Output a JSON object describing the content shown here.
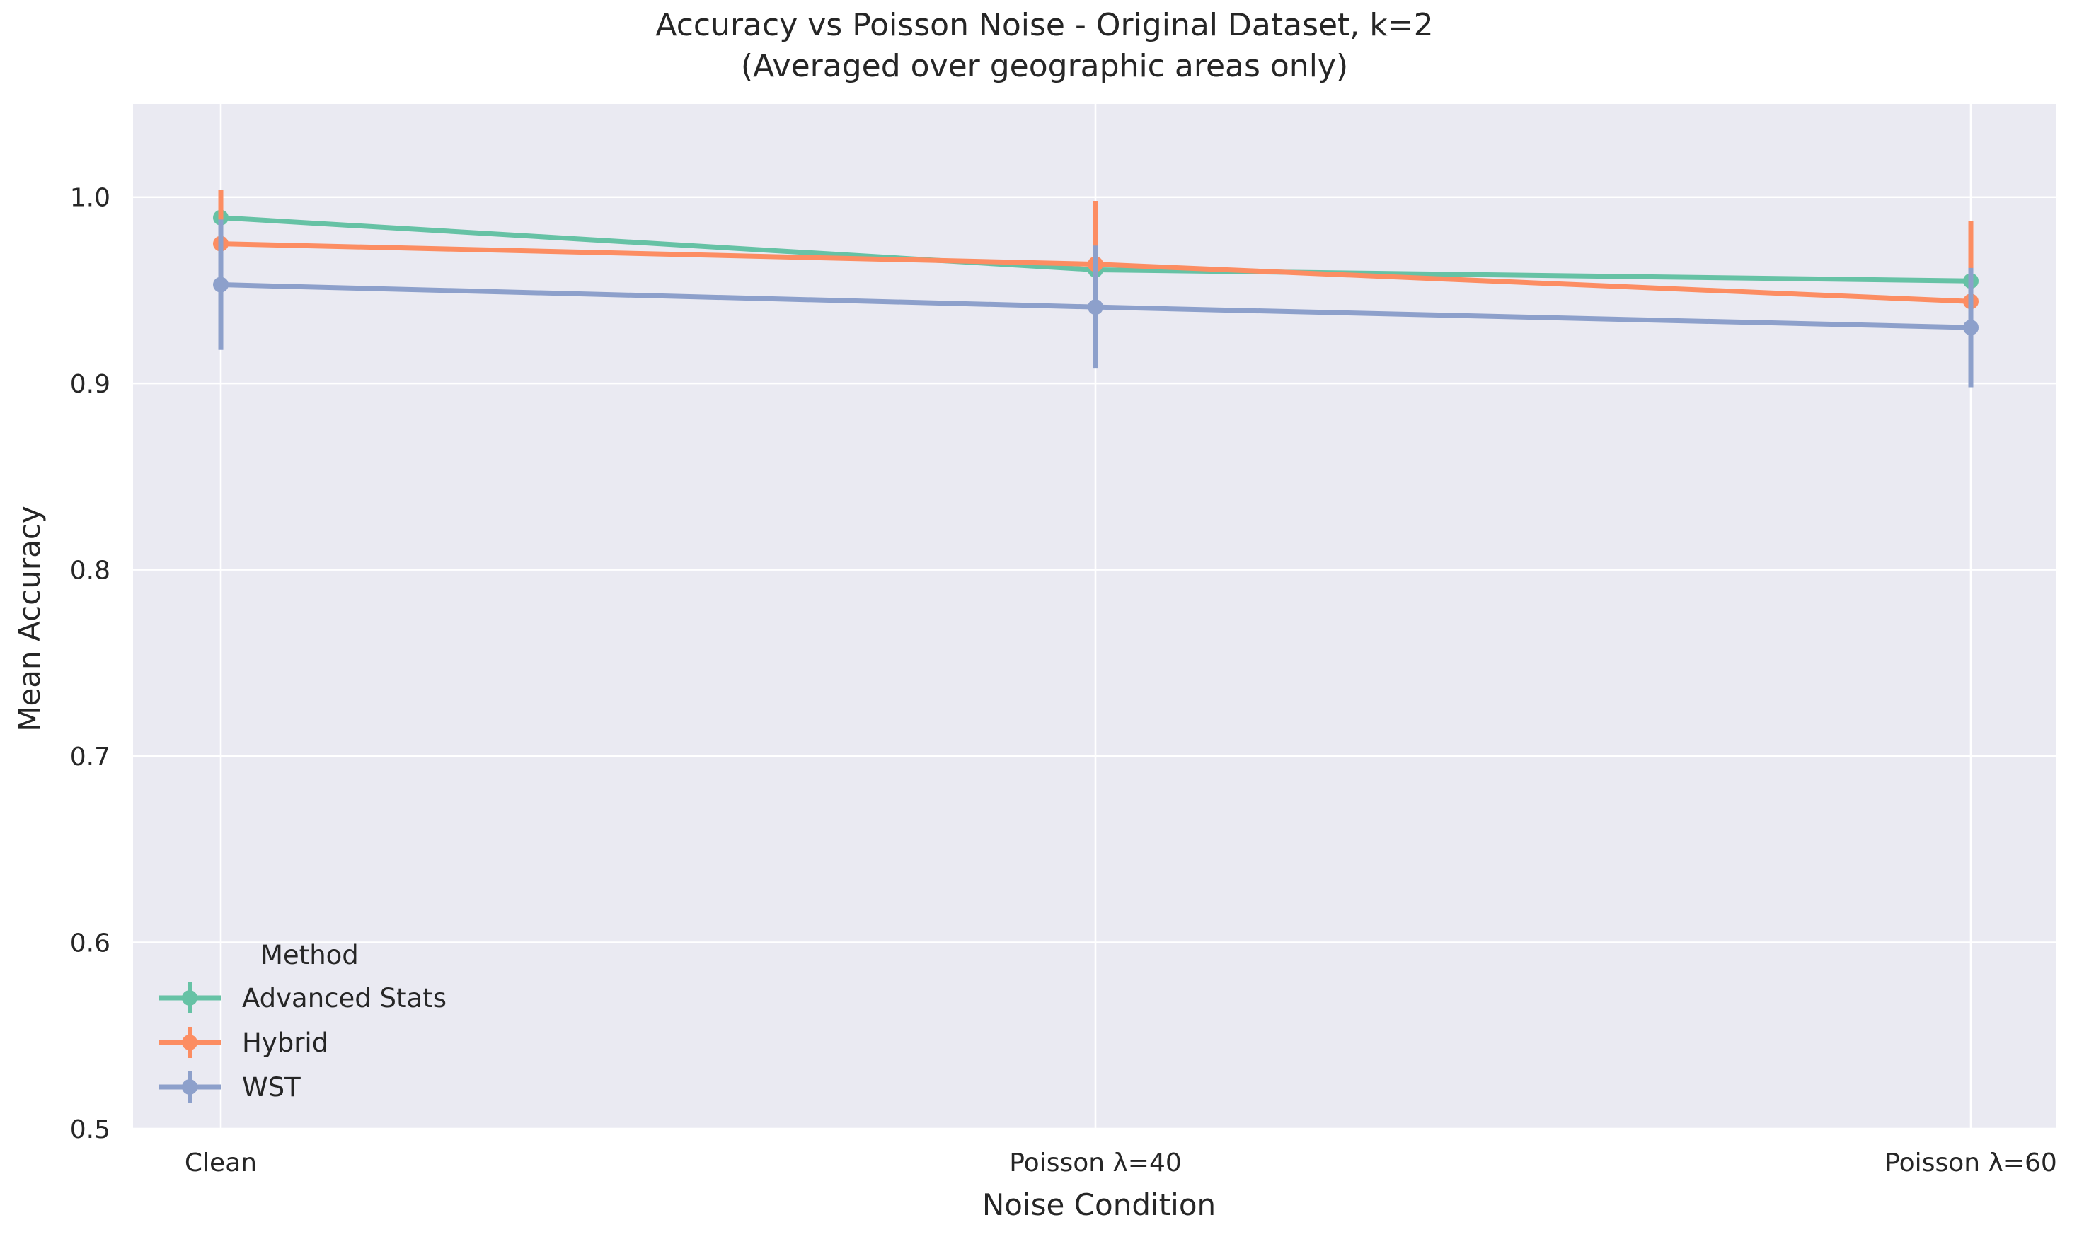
{
  "chart_data": {
    "type": "line",
    "title": "Accuracy vs Poisson Noise - Original Dataset, k=2",
    "subtitle": "(Averaged over geographic areas only)",
    "xlabel": "Noise Condition",
    "ylabel": "Mean Accuracy",
    "categories": [
      "Clean",
      "Poisson λ=40",
      "Poisson λ=60"
    ],
    "ylim": [
      0.5,
      1.05
    ],
    "yticks": [
      "0.5",
      "0.6",
      "0.7",
      "0.8",
      "0.9",
      "1.0"
    ],
    "grid": true,
    "legend": {
      "title": "Method",
      "position": "lower-left"
    },
    "series": [
      {
        "name": "Advanced Stats",
        "color": "#66c2a5",
        "values": [
          0.989,
          0.961,
          0.955
        ],
        "errors": [
          0.01,
          0.009,
          0.01
        ]
      },
      {
        "name": "Hybrid",
        "color": "#fc8d62",
        "values": [
          0.975,
          0.964,
          0.944
        ],
        "errors": [
          0.029,
          0.034,
          0.043
        ]
      },
      {
        "name": "WST",
        "color": "#8da0cb",
        "values": [
          0.953,
          0.941,
          0.93
        ],
        "errors": [
          0.035,
          0.033,
          0.032
        ]
      }
    ],
    "colors": {
      "plot_background": "#eaeaf2",
      "grid": "#ffffff"
    }
  }
}
